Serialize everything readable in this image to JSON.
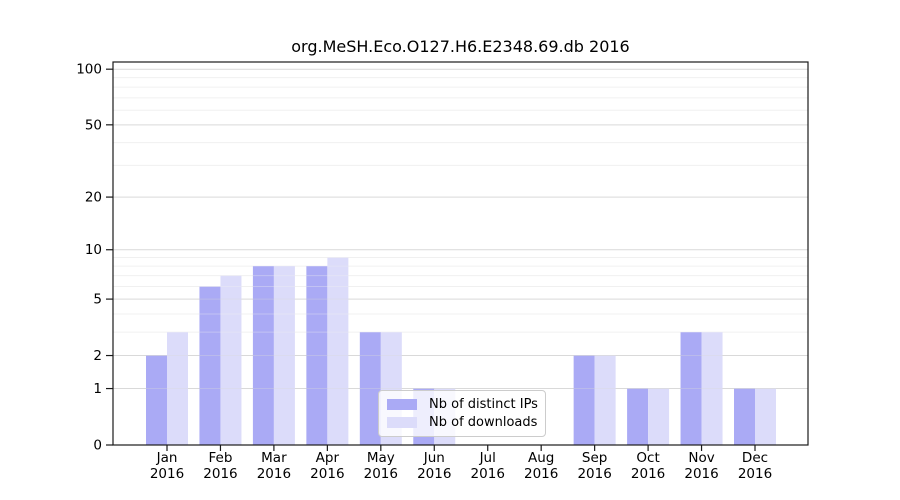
{
  "chart_data": {
    "type": "bar",
    "title": "org.MeSH.Eco.O127.H6.E2348.69.db 2016",
    "x_year": "2016",
    "categories": [
      "Jan",
      "Feb",
      "Mar",
      "Apr",
      "May",
      "Jun",
      "Jul",
      "Aug",
      "Sep",
      "Oct",
      "Nov",
      "Dec"
    ],
    "series": [
      {
        "name": "Nb of distinct IPs",
        "color": "#aaaaf5",
        "values": [
          2,
          6,
          8,
          8,
          3,
          1,
          0,
          0,
          2,
          1,
          3,
          1
        ]
      },
      {
        "name": "Nb of downloads",
        "color": "#dcdcfa",
        "values": [
          3,
          7,
          8,
          9,
          3,
          1,
          0,
          0,
          2,
          1,
          3,
          1
        ]
      }
    ],
    "y_axis": {
      "scale": "log1p",
      "range": [
        0,
        100
      ],
      "major_ticks": [
        0,
        1,
        2,
        5,
        10,
        20,
        50,
        100
      ],
      "minor_ticks": [
        3,
        4,
        6,
        7,
        8,
        9,
        30,
        40,
        60,
        70,
        80,
        90
      ]
    },
    "legend": {
      "entries": [
        "Nb of distinct IPs",
        "Nb of downloads"
      ],
      "position": "inside lower center"
    },
    "grid": "on",
    "colors": {
      "bar_distinct_ips": "#aaaaf5",
      "bar_downloads": "#dcdcfa",
      "grid_major": "#d9d9d9",
      "grid_minor": "#f0f0f0",
      "axis": "#1a1a1a",
      "text": "#000000",
      "legend_border": "#cccccc"
    }
  }
}
